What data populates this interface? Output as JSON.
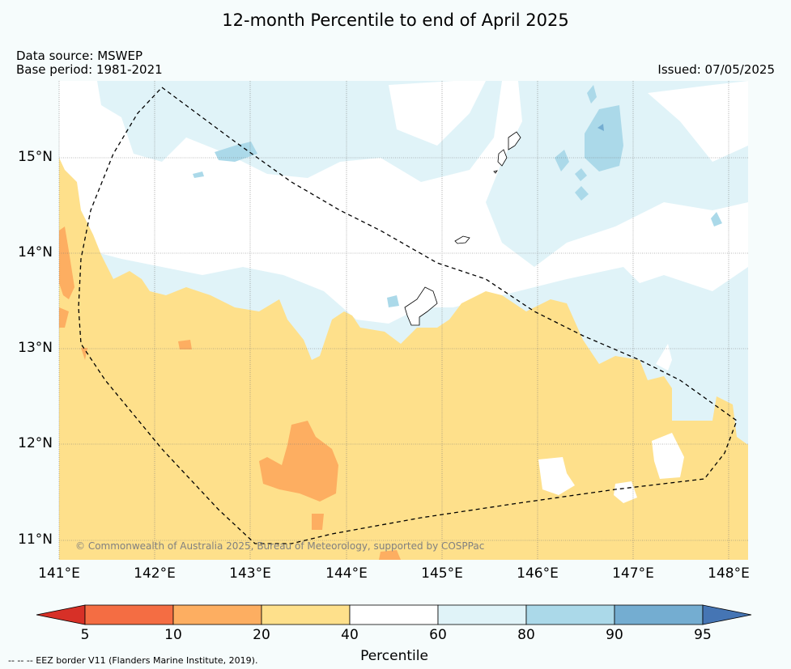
{
  "title": "12-month Percentile to end of April 2025",
  "data_source": "Data source: MSWEP",
  "base_period": "Base period: 1981-2021",
  "issued": "Issued: 07/05/2025",
  "copyright": "© Commonwealth of Australia 2025, Bureau of Meteorology, supported by COSPPac",
  "lat_labels": [
    "15°N",
    "14°N",
    "13°N",
    "12°N",
    "11°N"
  ],
  "lon_labels": [
    "141°E",
    "142°E",
    "143°E",
    "144°E",
    "145°E",
    "146°E",
    "147°E",
    "148°E"
  ],
  "colorbar": {
    "title": "Percentile",
    "tick_labels": [
      "5",
      "10",
      "20",
      "40",
      "60",
      "80",
      "90",
      "95"
    ],
    "colors": [
      "#d73027",
      "#f46d43",
      "#fdae61",
      "#fee08b",
      "#ffffff",
      "#e0f3f8",
      "#abd9e9",
      "#74add1",
      "#4575b4"
    ]
  },
  "footnote": "-- -- -- EEZ border V11 (Flanders Marine Institute, 2019)."
}
